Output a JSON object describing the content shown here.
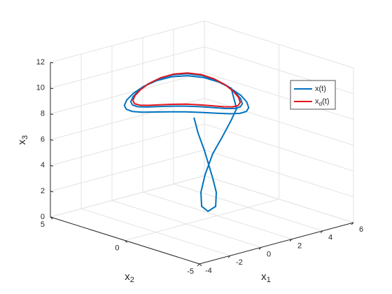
{
  "chart_data": {
    "type": "line3d",
    "xlabel": "x1",
    "ylabel": "x2",
    "zlabel": "x3",
    "xlim": [
      -4,
      6
    ],
    "ylim": [
      -5,
      5
    ],
    "zlim": [
      0,
      12
    ],
    "xticks": [
      -4,
      -2,
      0,
      2,
      4,
      6
    ],
    "yticks": [
      -5,
      0,
      5
    ],
    "zticks": [
      0,
      2,
      4,
      6,
      8,
      10,
      12
    ],
    "grid": true,
    "legend": "right",
    "series": [
      {
        "name": "x(t)",
        "color": "#0072bd",
        "x": [
          0.48,
          0.75,
          1.16,
          1.43,
          1.7,
          1.93,
          1.89,
          1.39,
          0.98,
          0.93,
          1.2,
          1.7,
          2.34,
          2.89,
          3.25,
          2.9,
          2.8,
          2.51,
          2.05,
          1.45,
          0.75,
          0,
          -0.75,
          -1.45,
          -2.05,
          -2.51,
          -2.8,
          -2.9,
          -2.8,
          -2.51,
          -2.05,
          -1.45,
          -0.75,
          0,
          0.75,
          1.45,
          2.05,
          2.51,
          2.8,
          2.6,
          2.51,
          2.25,
          1.84,
          1.3,
          0.67,
          0,
          -0.67,
          -1.3,
          -1.84,
          -2.25,
          -2.51,
          -2.6,
          -2.51,
          -2.25,
          -1.84,
          -1.3,
          -0.67,
          0,
          0.67,
          1.3,
          1.84,
          2.25,
          2.51,
          2.6
        ],
        "y": [
          0,
          0,
          0,
          0,
          0,
          0,
          0,
          0,
          0,
          0,
          0,
          0,
          0,
          0,
          0,
          0,
          0.75,
          1.45,
          2.05,
          2.51,
          2.8,
          2.9,
          2.8,
          2.51,
          2.05,
          1.45,
          0.75,
          0,
          -0.75,
          -1.45,
          -2.05,
          -2.51,
          -2.8,
          -2.9,
          -2.8,
          -2.51,
          -2.05,
          -1.45,
          -0.75,
          0,
          0.67,
          1.3,
          1.84,
          2.25,
          2.51,
          2.6,
          2.51,
          2.25,
          1.84,
          1.3,
          0.67,
          0,
          -0.67,
          -1.3,
          -1.84,
          -2.25,
          -2.51,
          -2.6,
          -2.51,
          -2.25,
          -1.84,
          -1.3,
          -0.67,
          0
        ],
        "z": [
          8.1,
          6.8,
          5.33,
          4.16,
          3.0,
          1.83,
          0.75,
          0.53,
          1.05,
          2.15,
          3.42,
          4.9,
          6.05,
          7.1,
          7.9,
          9.6,
          9.85,
          10.03,
          10.1,
          10.03,
          9.85,
          9.6,
          9.35,
          9.17,
          9.1,
          9.17,
          9.35,
          9.6,
          9.85,
          10.03,
          10.1,
          10.03,
          9.85,
          9.6,
          9.35,
          9.17,
          9.1,
          9.17,
          9.35,
          9.9,
          10.15,
          10.33,
          10.4,
          10.33,
          10.15,
          9.9,
          9.65,
          9.47,
          9.4,
          9.47,
          9.65,
          9.9,
          10.15,
          10.33,
          10.4,
          10.33,
          10.15,
          9.9,
          9.65,
          9.47,
          9.4,
          9.47,
          9.65,
          9.9
        ]
      },
      {
        "name": "xd(t)",
        "color": "#e4141b",
        "x": [
          2.5,
          2.41,
          2.17,
          1.77,
          1.25,
          0.65,
          0,
          -0.65,
          -1.25,
          -1.77,
          -2.17,
          -2.41,
          -2.5,
          -2.41,
          -2.17,
          -1.77,
          -1.25,
          -0.65,
          0,
          0.65,
          1.25,
          1.77,
          2.17,
          2.41,
          2.5
        ],
        "y": [
          0,
          0.65,
          1.25,
          1.77,
          2.17,
          2.41,
          2.5,
          2.41,
          2.17,
          1.77,
          1.25,
          0.65,
          0,
          -0.65,
          -1.25,
          -1.77,
          -2.17,
          -2.41,
          -2.5,
          -2.41,
          -2.17,
          -1.77,
          -1.25,
          -0.65,
          0
        ],
        "z": [
          10,
          10.25,
          10.43,
          10.5,
          10.43,
          10.25,
          10,
          9.75,
          9.57,
          9.5,
          9.57,
          9.75,
          10,
          10.25,
          10.43,
          10.5,
          10.43,
          10.25,
          10,
          9.75,
          9.57,
          9.5,
          9.57,
          9.75,
          10
        ]
      }
    ]
  }
}
